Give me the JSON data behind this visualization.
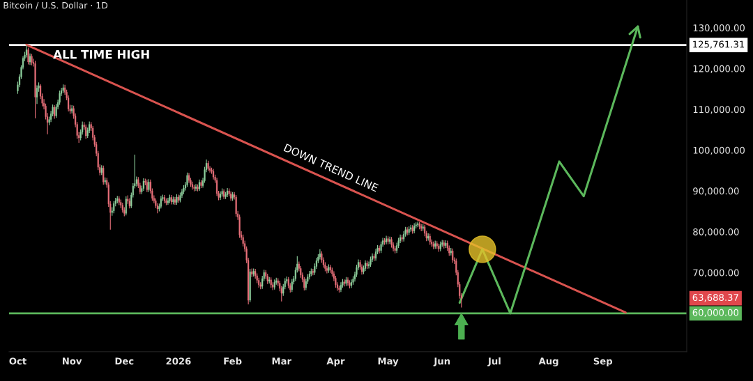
{
  "chart_data": {
    "type": "candlestick",
    "title": "Bitcoin / U.S. Dollar · 1D",
    "x": [
      "2025-10-01",
      "2025-10-02",
      "2025-10-03",
      "2025-10-04",
      "2025-10-05",
      "2025-10-06",
      "2025-10-07",
      "2025-10-08",
      "2025-10-09",
      "2025-10-10",
      "2025-10-11",
      "2025-10-12",
      "2025-10-13",
      "2025-10-14",
      "2025-10-15",
      "2025-10-16",
      "2025-10-17",
      "2025-10-18",
      "2025-10-19",
      "2025-10-20",
      "2025-10-21",
      "2025-10-22",
      "2025-10-23",
      "2025-10-24",
      "2025-10-25",
      "2025-10-26",
      "2025-10-27",
      "2025-10-28",
      "2025-10-29",
      "2025-10-30",
      "2025-10-31",
      "2025-11-01",
      "2025-11-02",
      "2025-11-03",
      "2025-11-04",
      "2025-11-05",
      "2025-11-06",
      "2025-11-07",
      "2025-11-08",
      "2025-11-09",
      "2025-11-10",
      "2025-11-11",
      "2025-11-12",
      "2025-11-13",
      "2025-11-14",
      "2025-11-15",
      "2025-11-16",
      "2025-11-17",
      "2025-11-18",
      "2025-11-19",
      "2025-11-20",
      "2025-11-21",
      "2025-11-22",
      "2025-11-23",
      "2025-11-24",
      "2025-11-25",
      "2025-11-26",
      "2025-11-27",
      "2025-11-28",
      "2025-11-29",
      "2025-11-30",
      "2025-12-01",
      "2025-12-02",
      "2025-12-03",
      "2025-12-04",
      "2025-12-05",
      "2025-12-06",
      "2025-12-07",
      "2025-12-08",
      "2025-12-09",
      "2025-12-10",
      "2025-12-11",
      "2025-12-12",
      "2025-12-13",
      "2025-12-14",
      "2025-12-15",
      "2025-12-16",
      "2025-12-17",
      "2025-12-18",
      "2025-12-19",
      "2025-12-20",
      "2025-12-21",
      "2025-12-22",
      "2025-12-23",
      "2025-12-24",
      "2025-12-25",
      "2025-12-26",
      "2025-12-27",
      "2025-12-28",
      "2025-12-29",
      "2025-12-30",
      "2025-12-31",
      "2026-01-01",
      "2026-01-02",
      "2026-01-03",
      "2026-01-04",
      "2026-01-05",
      "2026-01-06",
      "2026-01-07",
      "2026-01-08",
      "2026-01-09",
      "2026-01-10",
      "2026-01-11",
      "2026-01-12",
      "2026-01-13",
      "2026-01-14",
      "2026-01-15",
      "2026-01-16",
      "2026-01-17",
      "2026-01-18",
      "2026-01-19",
      "2026-01-20",
      "2026-01-21",
      "2026-01-22",
      "2026-01-23",
      "2026-01-24",
      "2026-01-25",
      "2026-01-26",
      "2026-01-27",
      "2026-01-28",
      "2026-01-29",
      "2026-01-30",
      "2026-01-31",
      "2026-02-01",
      "2026-02-02",
      "2026-02-03",
      "2026-02-04",
      "2026-02-05",
      "2026-02-06",
      "2026-02-07",
      "2026-02-08",
      "2026-02-09",
      "2026-02-10",
      "2026-02-11",
      "2026-02-12",
      "2026-02-13",
      "2026-02-14",
      "2026-02-15",
      "2026-02-16",
      "2026-02-17",
      "2026-02-18",
      "2026-02-19",
      "2026-02-20",
      "2026-02-21",
      "2026-02-22",
      "2026-02-23",
      "2026-02-24",
      "2026-02-25",
      "2026-02-26",
      "2026-02-27",
      "2026-02-28",
      "2026-03-01",
      "2026-03-02",
      "2026-03-03",
      "2026-03-04",
      "2026-03-05",
      "2026-03-06",
      "2026-03-07",
      "2026-03-08",
      "2026-03-09",
      "2026-03-10",
      "2026-03-11",
      "2026-03-12",
      "2026-03-13",
      "2026-03-14",
      "2026-03-15",
      "2026-03-16",
      "2026-03-17",
      "2026-03-18",
      "2026-03-19",
      "2026-03-20",
      "2026-03-21",
      "2026-03-22",
      "2026-03-23",
      "2026-03-24",
      "2026-03-25",
      "2026-03-26",
      "2026-03-27",
      "2026-03-28",
      "2026-03-29",
      "2026-03-30",
      "2026-03-31",
      "2026-04-01",
      "2026-04-02",
      "2026-04-03",
      "2026-04-04",
      "2026-04-05",
      "2026-04-06",
      "2026-04-07",
      "2026-04-08",
      "2026-04-09",
      "2026-04-10",
      "2026-04-11",
      "2026-04-12",
      "2026-04-13",
      "2026-04-14",
      "2026-04-15",
      "2026-04-16",
      "2026-04-17",
      "2026-04-18",
      "2026-04-19",
      "2026-04-20",
      "2026-04-21",
      "2026-04-22",
      "2026-04-23",
      "2026-04-24",
      "2026-04-25",
      "2026-04-26",
      "2026-04-27",
      "2026-04-28",
      "2026-04-29",
      "2026-04-30",
      "2026-05-01",
      "2026-05-02",
      "2026-05-03",
      "2026-05-04",
      "2026-05-05",
      "2026-05-06",
      "2026-05-07",
      "2026-05-08",
      "2026-05-09",
      "2026-05-10",
      "2026-05-11",
      "2026-05-12",
      "2026-05-13",
      "2026-05-14",
      "2026-05-15",
      "2026-05-16",
      "2026-05-17",
      "2026-05-18",
      "2026-05-19",
      "2026-05-20",
      "2026-05-21",
      "2026-05-22",
      "2026-05-23",
      "2026-05-24",
      "2026-05-25",
      "2026-05-26",
      "2026-05-27",
      "2026-05-28",
      "2026-05-29",
      "2026-05-30",
      "2026-05-31",
      "2026-06-01",
      "2026-06-02",
      "2026-06-03",
      "2026-06-04",
      "2026-06-05",
      "2026-06-06",
      "2026-06-07",
      "2026-06-08",
      "2026-06-09",
      "2026-06-10",
      "2026-06-11",
      "2026-06-12"
    ],
    "ohlc": [
      [
        114500,
        116800,
        113800,
        116000
      ],
      [
        116000,
        118600,
        115400,
        118000
      ],
      [
        118000,
        120800,
        117500,
        120300
      ],
      [
        120300,
        123000,
        119800,
        122500
      ],
      [
        122500,
        124100,
        121800,
        123300
      ],
      [
        123300,
        125761.31,
        122700,
        124600
      ],
      [
        124600,
        125100,
        121000,
        121600
      ],
      [
        121600,
        123700,
        120900,
        123000
      ],
      [
        123000,
        123600,
        120800,
        121500
      ],
      [
        121500,
        122400,
        120500,
        121200
      ],
      [
        121200,
        121900,
        107800,
        113000
      ],
      [
        113000,
        115900,
        111300,
        115200
      ],
      [
        115200,
        116600,
        114300,
        115800
      ],
      [
        115800,
        116200,
        112500,
        113200
      ],
      [
        113200,
        113900,
        110700,
        111500
      ],
      [
        111500,
        112500,
        110000,
        110800
      ],
      [
        110800,
        111400,
        107500,
        108200
      ],
      [
        108200,
        109100,
        103900,
        106800
      ],
      [
        106800,
        108200,
        106100,
        107500
      ],
      [
        107500,
        109600,
        106900,
        108900
      ],
      [
        108900,
        111200,
        108300,
        110500
      ],
      [
        110500,
        111000,
        107700,
        108400
      ],
      [
        108400,
        111300,
        107900,
        110600
      ],
      [
        110600,
        112400,
        110000,
        111700
      ],
      [
        111700,
        114600,
        111100,
        113900
      ],
      [
        113900,
        115300,
        113300,
        114600
      ],
      [
        114600,
        116100,
        114000,
        115300
      ],
      [
        115300,
        116000,
        113600,
        114200
      ],
      [
        114200,
        114800,
        112200,
        112800
      ],
      [
        112800,
        113400,
        109500,
        110100
      ],
      [
        110100,
        111100,
        108900,
        109600
      ],
      [
        109600,
        111000,
        109000,
        110200
      ],
      [
        110200,
        110900,
        107700,
        108400
      ],
      [
        108400,
        109000,
        105600,
        106300
      ],
      [
        106300,
        106900,
        102800,
        103600
      ],
      [
        103600,
        104500,
        101800,
        103000
      ],
      [
        103000,
        105100,
        102400,
        104400
      ],
      [
        104400,
        107000,
        103800,
        106200
      ],
      [
        106200,
        106900,
        105000,
        105700
      ],
      [
        105700,
        106300,
        102800,
        103500
      ],
      [
        103500,
        105500,
        103000,
        104800
      ],
      [
        104800,
        107000,
        104200,
        106300
      ],
      [
        106300,
        106900,
        104700,
        105400
      ],
      [
        105400,
        105900,
        102400,
        103100
      ],
      [
        103100,
        103700,
        100800,
        101400
      ],
      [
        101400,
        102000,
        98500,
        99200
      ],
      [
        99200,
        99800,
        95100,
        95800
      ],
      [
        95800,
        96500,
        93800,
        94500
      ],
      [
        94500,
        96300,
        93900,
        95600
      ],
      [
        95600,
        96200,
        91500,
        92200
      ],
      [
        92200,
        93300,
        91600,
        92600
      ],
      [
        92600,
        93200,
        90800,
        91500
      ],
      [
        91500,
        92100,
        86100,
        86800
      ],
      [
        86800,
        87500,
        80500,
        84700
      ],
      [
        84700,
        86000,
        83900,
        85100
      ],
      [
        85100,
        87500,
        84500,
        86900
      ],
      [
        86900,
        88300,
        86200,
        87600
      ],
      [
        87600,
        88800,
        87000,
        88100
      ],
      [
        88100,
        88700,
        86500,
        87200
      ],
      [
        87200,
        87900,
        85800,
        86500
      ],
      [
        86500,
        87100,
        84700,
        85300
      ],
      [
        85300,
        86000,
        83800,
        84500
      ],
      [
        84500,
        88700,
        84000,
        88000
      ],
      [
        88000,
        88900,
        86800,
        87500
      ],
      [
        87500,
        88200,
        85700,
        86300
      ],
      [
        86300,
        89600,
        85800,
        89000
      ],
      [
        89000,
        91900,
        88400,
        91200
      ],
      [
        91200,
        98900,
        90600,
        91800
      ],
      [
        91800,
        93500,
        91100,
        92800
      ],
      [
        92800,
        93400,
        90700,
        91300
      ],
      [
        91300,
        92000,
        89200,
        89800
      ],
      [
        89800,
        91300,
        89200,
        90600
      ],
      [
        90600,
        93100,
        90000,
        92400
      ],
      [
        92400,
        93000,
        91400,
        92100
      ],
      [
        92100,
        92800,
        89700,
        90300
      ],
      [
        90300,
        92900,
        89700,
        92200
      ],
      [
        92200,
        92800,
        89400,
        90000
      ],
      [
        90000,
        90600,
        87600,
        88200
      ],
      [
        88200,
        88900,
        87000,
        87600
      ],
      [
        87600,
        88200,
        85800,
        86400
      ],
      [
        86400,
        87000,
        84500,
        85600
      ],
      [
        85600,
        86900,
        85000,
        86200
      ],
      [
        86200,
        88800,
        85700,
        88100
      ],
      [
        88100,
        89100,
        87600,
        88400
      ],
      [
        88400,
        89000,
        87000,
        87600
      ],
      [
        87600,
        88200,
        86500,
        87100
      ],
      [
        87100,
        88300,
        86600,
        87600
      ],
      [
        87600,
        89100,
        87000,
        88400
      ],
      [
        88400,
        89000,
        86700,
        87300
      ],
      [
        87300,
        88600,
        86700,
        87900
      ],
      [
        87900,
        88500,
        86600,
        87200
      ],
      [
        87200,
        89200,
        86600,
        88500
      ],
      [
        88500,
        89100,
        87100,
        87700
      ],
      [
        87700,
        89600,
        87200,
        88900
      ],
      [
        88900,
        90500,
        88300,
        89800
      ],
      [
        89800,
        91400,
        89200,
        90700
      ],
      [
        90700,
        92200,
        90100,
        91500
      ],
      [
        91500,
        94500,
        91000,
        93800
      ],
      [
        93800,
        94400,
        92000,
        92600
      ],
      [
        92600,
        93200,
        91000,
        91600
      ],
      [
        91600,
        92300,
        90300,
        90900
      ],
      [
        90900,
        91500,
        89900,
        90600
      ],
      [
        90600,
        91700,
        90000,
        91000
      ],
      [
        91000,
        91600,
        89900,
        90500
      ],
      [
        90500,
        92800,
        90000,
        92100
      ],
      [
        92100,
        92700,
        90700,
        91300
      ],
      [
        91300,
        93200,
        90800,
        92500
      ],
      [
        92500,
        95900,
        92000,
        95200
      ],
      [
        95200,
        97700,
        94600,
        96800
      ],
      [
        96800,
        97400,
        94900,
        95500
      ],
      [
        95500,
        96100,
        94500,
        95100
      ],
      [
        95100,
        95700,
        94200,
        94800
      ],
      [
        94800,
        95400,
        92800,
        93400
      ],
      [
        93400,
        94000,
        92000,
        92600
      ],
      [
        92600,
        93200,
        88800,
        89400
      ],
      [
        89400,
        90000,
        87700,
        88400
      ],
      [
        88400,
        89900,
        87800,
        89200
      ],
      [
        89200,
        90600,
        88600,
        89900
      ],
      [
        89900,
        90400,
        88000,
        88600
      ],
      [
        88600,
        89700,
        88000,
        89100
      ],
      [
        89100,
        90700,
        88500,
        90000
      ],
      [
        90000,
        90600,
        88700,
        89300
      ],
      [
        89300,
        89900,
        87600,
        88200
      ],
      [
        88200,
        89700,
        87600,
        89100
      ],
      [
        89100,
        89700,
        87900,
        88500
      ],
      [
        88500,
        89000,
        83700,
        84400
      ],
      [
        84400,
        85100,
        82900,
        83600
      ],
      [
        83600,
        84200,
        78500,
        79200
      ],
      [
        79200,
        80100,
        77900,
        78600
      ],
      [
        78600,
        79300,
        76400,
        77100
      ],
      [
        77100,
        77800,
        75100,
        75800
      ],
      [
        75800,
        76400,
        72300,
        73000
      ],
      [
        73000,
        73600,
        62200,
        63200
      ],
      [
        63200,
        70900,
        62700,
        70200
      ],
      [
        70200,
        71000,
        68900,
        69600
      ],
      [
        69600,
        71000,
        69000,
        70300
      ],
      [
        70300,
        70900,
        68500,
        69200
      ],
      [
        69200,
        69800,
        67400,
        68100
      ],
      [
        68100,
        68700,
        66300,
        67000
      ],
      [
        67000,
        67600,
        65900,
        66600
      ],
      [
        66600,
        69200,
        66000,
        68500
      ],
      [
        68500,
        70700,
        67900,
        70000
      ],
      [
        70000,
        70600,
        68400,
        69100
      ],
      [
        69100,
        69700,
        67200,
        67900
      ],
      [
        67900,
        68900,
        67300,
        68200
      ],
      [
        68200,
        68800,
        66300,
        67000
      ],
      [
        67000,
        67600,
        65700,
        66400
      ],
      [
        66400,
        68300,
        65800,
        67600
      ],
      [
        67600,
        68700,
        67000,
        68000
      ],
      [
        68000,
        68600,
        66700,
        67400
      ],
      [
        67400,
        68000,
        65400,
        66100
      ],
      [
        66100,
        66700,
        62900,
        64900
      ],
      [
        64900,
        67200,
        64300,
        66500
      ],
      [
        66500,
        68600,
        65900,
        67900
      ],
      [
        67900,
        69000,
        67300,
        68300
      ],
      [
        68300,
        68900,
        66100,
        66800
      ],
      [
        66800,
        67400,
        65100,
        65800
      ],
      [
        65800,
        68400,
        65200,
        67700
      ],
      [
        67700,
        69200,
        67100,
        68500
      ],
      [
        68500,
        71300,
        67900,
        70600
      ],
      [
        70600,
        74000,
        70000,
        72100
      ],
      [
        72100,
        72700,
        70300,
        71000
      ],
      [
        71000,
        71600,
        68700,
        69400
      ],
      [
        69400,
        70000,
        67600,
        68300
      ],
      [
        68300,
        68900,
        65600,
        66300
      ],
      [
        66300,
        68500,
        65700,
        67800
      ],
      [
        67800,
        69600,
        67200,
        68900
      ],
      [
        68900,
        70400,
        68300,
        69700
      ],
      [
        69700,
        71000,
        69100,
        70300
      ],
      [
        70300,
        70900,
        69300,
        70000
      ],
      [
        70000,
        72200,
        69400,
        71500
      ],
      [
        71500,
        73600,
        70900,
        72900
      ],
      [
        72900,
        74500,
        72300,
        73800
      ],
      [
        73800,
        75700,
        73200,
        74600
      ],
      [
        74600,
        75200,
        72400,
        73100
      ],
      [
        73100,
        73700,
        71200,
        71900
      ],
      [
        71900,
        72500,
        70300,
        71000
      ],
      [
        71000,
        71600,
        69800,
        70500
      ],
      [
        70500,
        72000,
        69900,
        71300
      ],
      [
        71300,
        71900,
        69900,
        70600
      ],
      [
        70600,
        71200,
        69000,
        69700
      ],
      [
        69700,
        70300,
        67900,
        68600
      ],
      [
        68600,
        69200,
        66300,
        67000
      ],
      [
        67000,
        67600,
        65500,
        66200
      ],
      [
        66200,
        66800,
        65100,
        65800
      ],
      [
        65800,
        67600,
        65200,
        66900
      ],
      [
        66900,
        68400,
        66300,
        67700
      ],
      [
        67700,
        68300,
        66600,
        67300
      ],
      [
        67300,
        68900,
        66700,
        68200
      ],
      [
        68200,
        68800,
        66800,
        67500
      ],
      [
        67500,
        68100,
        66100,
        66800
      ],
      [
        66800,
        68300,
        66200,
        67600
      ],
      [
        67600,
        69100,
        67000,
        68400
      ],
      [
        68400,
        70200,
        67800,
        69500
      ],
      [
        69500,
        71900,
        68900,
        71200
      ],
      [
        71200,
        73200,
        70600,
        72500
      ],
      [
        72500,
        73100,
        70700,
        71400
      ],
      [
        71400,
        72000,
        69500,
        70200
      ],
      [
        70200,
        71700,
        69600,
        71000
      ],
      [
        71000,
        73000,
        70400,
        72300
      ],
      [
        72300,
        72900,
        70900,
        71600
      ],
      [
        71600,
        72700,
        71000,
        72000
      ],
      [
        72000,
        73900,
        71400,
        73200
      ],
      [
        73200,
        74700,
        72600,
        74000
      ],
      [
        74000,
        74600,
        72800,
        73500
      ],
      [
        73500,
        75800,
        72900,
        75100
      ],
      [
        75100,
        76700,
        74500,
        76000
      ],
      [
        76000,
        76600,
        74700,
        75400
      ],
      [
        75400,
        77600,
        74800,
        76900
      ],
      [
        76900,
        78500,
        76300,
        77800
      ],
      [
        77800,
        78400,
        76800,
        77500
      ],
      [
        77500,
        79000,
        76900,
        78300
      ],
      [
        78300,
        78900,
        76900,
        77600
      ],
      [
        77600,
        78800,
        77000,
        78100
      ],
      [
        78100,
        78700,
        76100,
        76800
      ],
      [
        76800,
        77400,
        75200,
        75900
      ],
      [
        75900,
        76500,
        74700,
        75400
      ],
      [
        75400,
        77300,
        74800,
        76600
      ],
      [
        76600,
        78500,
        76000,
        77800
      ],
      [
        77800,
        79300,
        77200,
        78600
      ],
      [
        78600,
        79200,
        77500,
        78200
      ],
      [
        78200,
        80100,
        77600,
        79400
      ],
      [
        79400,
        81200,
        78800,
        80500
      ],
      [
        80500,
        81100,
        79100,
        79800
      ],
      [
        79800,
        81300,
        79200,
        80600
      ],
      [
        80600,
        81700,
        80000,
        81000
      ],
      [
        81000,
        81600,
        79500,
        80200
      ],
      [
        80200,
        82100,
        79600,
        81400
      ],
      [
        81400,
        82300,
        80800,
        81700
      ],
      [
        81700,
        82500,
        81100,
        82000
      ],
      [
        82000,
        82400,
        80600,
        81300
      ],
      [
        81300,
        81900,
        80100,
        80800
      ],
      [
        80800,
        81900,
        80200,
        81200
      ],
      [
        81200,
        81700,
        78900,
        79600
      ],
      [
        79600,
        80200,
        77700,
        78400
      ],
      [
        78400,
        79600,
        77800,
        78900
      ],
      [
        78900,
        79500,
        76800,
        77500
      ],
      [
        77500,
        78100,
        76300,
        77000
      ],
      [
        77000,
        77600,
        75700,
        76400
      ],
      [
        76400,
        77800,
        75800,
        77100
      ],
      [
        77100,
        77700,
        75800,
        76500
      ],
      [
        76500,
        77100,
        75100,
        75800
      ],
      [
        75800,
        77600,
        75200,
        76900
      ],
      [
        76900,
        78000,
        76300,
        77300
      ],
      [
        77300,
        77900,
        75900,
        76600
      ],
      [
        76600,
        77900,
        76000,
        77200
      ],
      [
        77200,
        77800,
        75300,
        76000
      ],
      [
        76000,
        76600,
        74100,
        74800
      ],
      [
        74800,
        76000,
        74200,
        75300
      ],
      [
        75300,
        75900,
        72400,
        73100
      ],
      [
        73100,
        73700,
        72100,
        72800
      ],
      [
        72800,
        73400,
        69300,
        70000
      ],
      [
        70000,
        70600,
        66400,
        67100
      ],
      [
        67100,
        67700,
        63600,
        64300
      ],
      [
        64300,
        64900,
        61400,
        63688.37
      ]
    ],
    "series": [
      {
        "type": "line",
        "color": "#d9534f",
        "x": [
          "2025-10-06",
          "2026-09-14"
        ],
        "values": [
          125800,
          60200
        ]
      },
      {
        "type": "line",
        "color": "#5cb85c",
        "x": [
          "2026-06-11",
          "2026-06-24",
          "2026-07-10",
          "2026-08-07",
          "2026-08-21",
          "2026-09-21"
        ],
        "values": [
          62600,
          75700,
          60000,
          97200,
          88700,
          130300
        ]
      },
      {
        "type": "scatter",
        "color": "#e6c229",
        "marker": "circle",
        "x": [
          "2026-06-24"
        ],
        "values": [
          75700
        ]
      }
    ],
    "ref_lines": [
      {
        "axis": "y",
        "value": 125761.31,
        "label": "125,761.31",
        "color": "#ffffff"
      },
      {
        "axis": "y",
        "value": 60000,
        "label": "60,000.00",
        "color": "#5cb85c"
      }
    ],
    "annotations": [
      "ALL TIME HIGH",
      "DOWN TREND LINE",
      "63,688.37"
    ],
    "xlim": [
      "2025-09-26",
      "2026-10-19"
    ],
    "xticks": [
      {
        "value": "2025-10-01",
        "label": "Oct"
      },
      {
        "value": "2025-11-01",
        "label": "Nov"
      },
      {
        "value": "2025-12-01",
        "label": "Dec"
      },
      {
        "value": "2026-01-01",
        "label": "2026"
      },
      {
        "value": "2026-02-01",
        "label": "Feb"
      },
      {
        "value": "2026-03-01",
        "label": "Mar"
      },
      {
        "value": "2026-04-01",
        "label": "Apr"
      },
      {
        "value": "2026-05-01",
        "label": "May"
      },
      {
        "value": "2026-06-01",
        "label": "Jun"
      },
      {
        "value": "2026-07-01",
        "label": "Jul"
      },
      {
        "value": "2026-08-01",
        "label": "Aug"
      },
      {
        "value": "2026-09-01",
        "label": "Sep"
      }
    ],
    "ylim": [
      50600,
      136800
    ],
    "yticks": [
      {
        "value": 70000,
        "label": "70,000.00"
      },
      {
        "value": 80000,
        "label": "80,000.00"
      },
      {
        "value": 90000,
        "label": "90,000.00"
      },
      {
        "value": 100000,
        "label": "100,000.00"
      },
      {
        "value": 110000,
        "label": "110,000.00"
      },
      {
        "value": 120000,
        "label": "120,000.00"
      },
      {
        "value": 130000,
        "label": "130,000.00"
      }
    ]
  }
}
